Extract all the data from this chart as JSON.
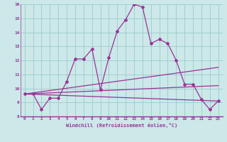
{
  "xlabel": "Windchill (Refroidissement éolien,°C)",
  "bg_color": "#cce8e8",
  "grid_color": "#99cccc",
  "line_color": "#993399",
  "x_min": 0,
  "x_max": 23,
  "y_min": 8,
  "y_max": 16,
  "x_ticks": [
    0,
    1,
    2,
    3,
    4,
    5,
    6,
    7,
    8,
    9,
    10,
    11,
    12,
    13,
    14,
    15,
    16,
    17,
    18,
    19,
    20,
    21,
    22,
    23
  ],
  "y_ticks": [
    8,
    9,
    10,
    11,
    12,
    13,
    14,
    15,
    16
  ],
  "series1_x": [
    0,
    1,
    2,
    3,
    4,
    5,
    6,
    7,
    8,
    9,
    10,
    11,
    12,
    13,
    14,
    15,
    16,
    17,
    18,
    19,
    20,
    21,
    22,
    23
  ],
  "series1_y": [
    9.6,
    9.6,
    8.5,
    9.3,
    9.3,
    10.5,
    12.1,
    12.1,
    12.8,
    9.9,
    12.2,
    14.1,
    14.9,
    16.0,
    15.8,
    13.2,
    13.5,
    13.2,
    12.0,
    10.3,
    10.3,
    9.2,
    8.5,
    9.1
  ],
  "series2_x": [
    0,
    23
  ],
  "series2_y": [
    9.6,
    9.1
  ],
  "series3_x": [
    0,
    23
  ],
  "series3_y": [
    9.6,
    11.5
  ],
  "series4_x": [
    0,
    23
  ],
  "series4_y": [
    9.6,
    10.2
  ]
}
